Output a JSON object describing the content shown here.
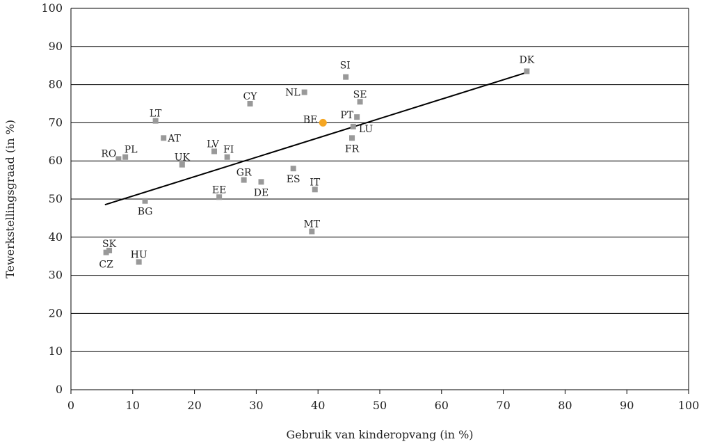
{
  "chart_data": {
    "type": "scatter",
    "title": "",
    "xlabel": "Gebruik van kinderopvang (in %)",
    "ylabel": "Tewerkstellingsgraad (in %)",
    "xlim": [
      0,
      100
    ],
    "ylim": [
      0,
      100
    ],
    "xticks": [
      "0",
      "10",
      "20",
      "30",
      "40",
      "50",
      "60",
      "70",
      "80",
      "90",
      "100"
    ],
    "yticks": [
      "0",
      "10",
      "20",
      "30",
      "40",
      "50",
      "60",
      "70",
      "80",
      "90",
      "100"
    ],
    "grid": "horizontal",
    "colors": {
      "point": "#999999",
      "highlight": "#F5A623",
      "trend": "#000000"
    },
    "trendline": {
      "from": [
        5.5,
        48.5
      ],
      "to": [
        73.8,
        83.2
      ]
    },
    "points": [
      {
        "label": "DK",
        "x": 73.8,
        "y": 83.5,
        "lx": 0,
        "ly": -12,
        "anchor": "middle"
      },
      {
        "label": "SI",
        "x": 44.5,
        "y": 82.0,
        "lx": -1,
        "ly": -12,
        "anchor": "middle"
      },
      {
        "label": "NL",
        "x": 37.8,
        "y": 78.0,
        "lx": -6,
        "ly": 5,
        "anchor": "end"
      },
      {
        "label": "SE",
        "x": 46.8,
        "y": 75.5,
        "lx": 0,
        "ly": -6,
        "anchor": "middle"
      },
      {
        "label": "CY",
        "x": 29.0,
        "y": 75.0,
        "lx": 0,
        "ly": -6,
        "anchor": "middle"
      },
      {
        "label": "PT",
        "x": 46.3,
        "y": 71.5,
        "lx": -5,
        "ly": 2,
        "anchor": "end"
      },
      {
        "label": "LT",
        "x": 13.7,
        "y": 70.5,
        "lx": 0,
        "ly": -6,
        "anchor": "middle"
      },
      {
        "label": "BE",
        "x": 40.8,
        "y": 70.0,
        "lx": -8,
        "ly": 0,
        "anchor": "end",
        "highlight": true
      },
      {
        "label": "LU",
        "x": 45.7,
        "y": 69.0,
        "lx": 8,
        "ly": 8,
        "anchor": "start"
      },
      {
        "label": "AT",
        "x": 15.0,
        "y": 66.0,
        "lx": 6,
        "ly": 5,
        "anchor": "start"
      },
      {
        "label": "FR",
        "x": 45.5,
        "y": 66.0,
        "lx": 0,
        "ly": 20,
        "anchor": "middle"
      },
      {
        "label": "LV",
        "x": 23.2,
        "y": 62.5,
        "lx": -2,
        "ly": -6,
        "anchor": "middle"
      },
      {
        "label": "FI",
        "x": 25.3,
        "y": 61.0,
        "lx": 2,
        "ly": -6,
        "anchor": "middle"
      },
      {
        "label": "PL",
        "x": 8.8,
        "y": 61.0,
        "lx": 8,
        "ly": -6,
        "anchor": "middle"
      },
      {
        "label": "RO",
        "x": 7.7,
        "y": 60.5,
        "lx": -14,
        "ly": -3,
        "anchor": "middle"
      },
      {
        "label": "UK",
        "x": 18.0,
        "y": 59.0,
        "lx": 0,
        "ly": -6,
        "anchor": "middle"
      },
      {
        "label": "ES",
        "x": 36.0,
        "y": 58.0,
        "lx": 0,
        "ly": 20,
        "anchor": "middle"
      },
      {
        "label": "GR",
        "x": 28.0,
        "y": 55.0,
        "lx": 0,
        "ly": -6,
        "anchor": "middle"
      },
      {
        "label": "DE",
        "x": 30.8,
        "y": 54.5,
        "lx": 0,
        "ly": 20,
        "anchor": "middle"
      },
      {
        "label": "IT",
        "x": 39.5,
        "y": 52.5,
        "lx": 0,
        "ly": -6,
        "anchor": "middle"
      },
      {
        "label": "EE",
        "x": 24.0,
        "y": 50.5,
        "lx": 0,
        "ly": -6,
        "anchor": "middle"
      },
      {
        "label": "BG",
        "x": 12.0,
        "y": 49.5,
        "lx": 0,
        "ly": 20,
        "anchor": "middle"
      },
      {
        "label": "MT",
        "x": 39.0,
        "y": 41.5,
        "lx": 0,
        "ly": -6,
        "anchor": "middle"
      },
      {
        "label": "SK",
        "x": 6.2,
        "y": 36.5,
        "lx": 0,
        "ly": -5,
        "anchor": "middle"
      },
      {
        "label": "CZ",
        "x": 5.7,
        "y": 36.0,
        "lx": 0,
        "ly": 22,
        "anchor": "middle"
      },
      {
        "label": "HU",
        "x": 11.0,
        "y": 33.5,
        "lx": 0,
        "ly": -6,
        "anchor": "middle"
      }
    ]
  }
}
